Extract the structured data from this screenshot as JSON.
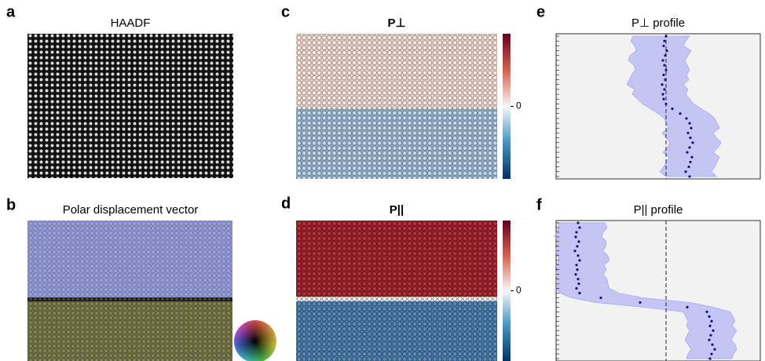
{
  "panels": {
    "a": {
      "label": "a",
      "title": "HAADF"
    },
    "b": {
      "label": "b",
      "title": "Polar displacement vector"
    },
    "c": {
      "label": "c",
      "title": "P⊥",
      "colorbar": {
        "lim": [
          -1,
          1
        ],
        "ticks": [
          0
        ]
      }
    },
    "d": {
      "label": "d",
      "title": "P||",
      "colorbar": {
        "lim": [
          -1,
          1
        ],
        "ticks": [
          0
        ]
      }
    }
  },
  "chart_data": [
    {
      "type": "profile",
      "label": "e",
      "title": "P⊥ profile",
      "y": [
        0,
        1,
        2,
        3,
        4,
        5,
        6,
        7,
        8,
        9,
        10,
        11,
        12,
        13,
        14,
        15,
        16,
        17,
        18,
        19,
        20,
        21,
        22,
        23,
        24,
        25,
        26,
        27,
        28,
        29
      ],
      "x": [
        0.0,
        -0.02,
        -0.03,
        0.01,
        -0.01,
        -0.04,
        -0.02,
        0.0,
        -0.03,
        -0.01,
        -0.05,
        -0.02,
        -0.04,
        -0.03,
        0.0,
        0.08,
        0.18,
        0.26,
        0.3,
        0.32,
        0.28,
        0.31,
        0.34,
        0.3,
        0.27,
        0.33,
        0.31,
        0.29,
        0.25,
        0.3
      ],
      "lower": [
        -0.42,
        -0.45,
        -0.4,
        -0.38,
        -0.46,
        -0.48,
        -0.41,
        -0.39,
        -0.44,
        -0.47,
        -0.5,
        -0.4,
        -0.43,
        -0.36,
        -0.3,
        -0.2,
        -0.1,
        -0.02,
        0.0,
        0.03,
        -0.05,
        0.0,
        0.05,
        0.02,
        -0.04,
        0.04,
        0.0,
        -0.03,
        -0.08,
        0.0
      ],
      "upper": [
        0.3,
        0.25,
        0.22,
        0.32,
        0.28,
        0.24,
        0.27,
        0.3,
        0.26,
        0.29,
        0.22,
        0.28,
        0.25,
        0.3,
        0.35,
        0.45,
        0.55,
        0.62,
        0.65,
        0.68,
        0.6,
        0.64,
        0.7,
        0.66,
        0.6,
        0.68,
        0.65,
        0.62,
        0.58,
        0.64
      ],
      "xlim": [
        -1.4,
        1.2
      ],
      "ylim": [
        -0.5,
        29.5
      ],
      "reference_line": 0,
      "color": "#14146e",
      "band_color": "#b8b8f5"
    },
    {
      "type": "profile",
      "label": "f",
      "title": "P|| profile",
      "y": [
        0,
        1,
        2,
        3,
        4,
        5,
        6,
        7,
        8,
        9,
        10,
        11,
        12,
        13,
        14,
        15,
        16,
        17,
        18,
        19,
        20,
        21,
        22,
        23,
        24,
        25,
        26,
        27,
        28,
        29
      ],
      "x": [
        -1.12,
        -1.1,
        -1.14,
        -1.15,
        -1.11,
        -1.13,
        -1.16,
        -1.12,
        -1.1,
        -1.14,
        -1.13,
        -1.15,
        -1.12,
        -1.11,
        -1.14,
        -1.1,
        -0.83,
        -0.33,
        0.27,
        0.52,
        0.55,
        0.58,
        0.56,
        0.6,
        0.57,
        0.55,
        0.59,
        0.62,
        0.58,
        0.56
      ],
      "lower": [
        -1.38,
        -1.36,
        -1.4,
        -1.42,
        -1.37,
        -1.39,
        -1.41,
        -1.38,
        -1.36,
        -1.4,
        -1.39,
        -1.41,
        -1.38,
        -1.37,
        -1.4,
        -1.35,
        -1.2,
        -0.9,
        -0.3,
        0.22,
        0.25,
        0.28,
        0.26,
        0.3,
        0.27,
        0.24,
        0.28,
        0.32,
        0.28,
        0.26
      ],
      "upper": [
        -0.78,
        -0.75,
        -0.8,
        -0.82,
        -0.76,
        -0.77,
        -0.8,
        -0.74,
        -0.72,
        -0.79,
        -0.76,
        -0.8,
        -0.75,
        -0.74,
        -0.72,
        -0.6,
        -0.3,
        0.3,
        0.6,
        0.82,
        0.85,
        0.88,
        0.84,
        0.9,
        0.86,
        0.83,
        0.88,
        0.9,
        0.86,
        0.84
      ],
      "xlim": [
        -1.4,
        1.2
      ],
      "ylim": [
        -0.5,
        29.5
      ],
      "reference_line": 0,
      "color": "#14146e",
      "band_color": "#b8b8f5"
    }
  ]
}
